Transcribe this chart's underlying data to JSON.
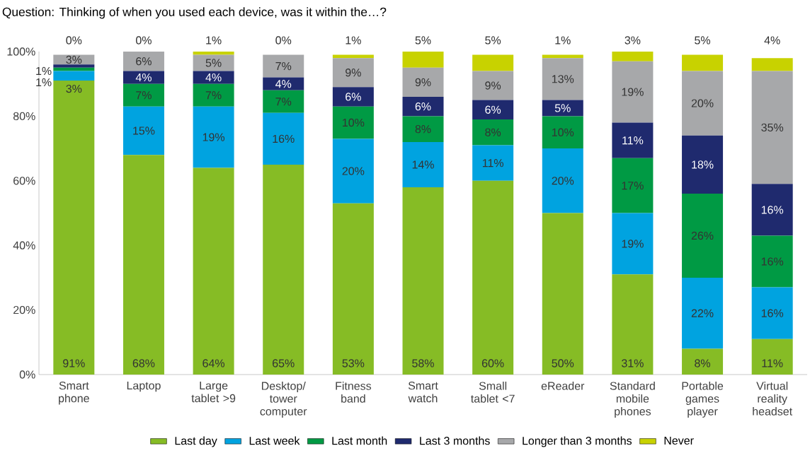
{
  "chart_data": {
    "type": "bar",
    "stacked": true,
    "title": "Question: Thinking of when you used each device, was it within the…?",
    "categories": [
      "Smart phone",
      "Laptop",
      "Large tablet >9",
      "Desktop/ tower computer",
      "Fitness band",
      "Smart watch",
      "Small tablet <7",
      "eReader",
      "Standard mobile phones",
      "Portable games player",
      "Virtual reality headset"
    ],
    "series": [
      {
        "name": "Last day",
        "color": "#86bc25",
        "values": [
          91,
          68,
          64,
          65,
          53,
          58,
          60,
          50,
          31,
          8,
          11
        ],
        "value_labels": [
          "91%",
          "68%",
          "64%",
          "65%",
          "53%",
          "58%",
          "60%",
          "50%",
          "31%",
          "8%",
          "11%"
        ]
      },
      {
        "name": "Last week",
        "color": "#00a3e0",
        "values": [
          3,
          15,
          19,
          16,
          20,
          14,
          11,
          20,
          19,
          22,
          16
        ],
        "value_labels": [
          "3%",
          "15%",
          "19%",
          "16%",
          "20%",
          "14%",
          "11%",
          "20%",
          "19%",
          "22%",
          "16%"
        ]
      },
      {
        "name": "Last month",
        "color": "#009a44",
        "values": [
          1,
          7,
          7,
          7,
          10,
          8,
          8,
          10,
          17,
          26,
          16
        ],
        "value_labels": [
          "1%",
          "7%",
          "7%",
          "7%",
          "10%",
          "8%",
          "8%",
          "10%",
          "17%",
          "26%",
          "16%"
        ]
      },
      {
        "name": "Last 3 months",
        "color": "#1f2a6e",
        "values": [
          1,
          4,
          4,
          4,
          6,
          6,
          6,
          5,
          11,
          18,
          16
        ],
        "value_labels": [
          "1%",
          "4%",
          "4%",
          "4%",
          "6%",
          "6%",
          "6%",
          "5%",
          "11%",
          "18%",
          "16%"
        ]
      },
      {
        "name": "Longer than 3 months",
        "color": "#a7a8aa",
        "values": [
          3,
          6,
          5,
          7,
          9,
          9,
          9,
          13,
          19,
          20,
          35
        ],
        "value_labels": [
          "3%",
          "6%",
          "5%",
          "7%",
          "9%",
          "9%",
          "9%",
          "13%",
          "19%",
          "20%",
          "35%"
        ]
      },
      {
        "name": "Never",
        "color": "#c8d200",
        "values": [
          0,
          0,
          1,
          0,
          1,
          5,
          5,
          1,
          3,
          5,
          4
        ],
        "value_labels": [
          "0%",
          "0%",
          "1%",
          "0%",
          "1%",
          "5%",
          "5%",
          "1%",
          "3%",
          "5%",
          "4%"
        ]
      }
    ],
    "ylim": [
      0,
      100
    ],
    "yticks": [
      {
        "value": 0,
        "label": "0%"
      },
      {
        "value": 20,
        "label": "20%"
      },
      {
        "value": 40,
        "label": "40%"
      },
      {
        "value": 60,
        "label": "60%"
      },
      {
        "value": 80,
        "label": "80%"
      },
      {
        "value": 100,
        "label": "100%"
      }
    ],
    "grid": false,
    "legend": "bottom"
  }
}
